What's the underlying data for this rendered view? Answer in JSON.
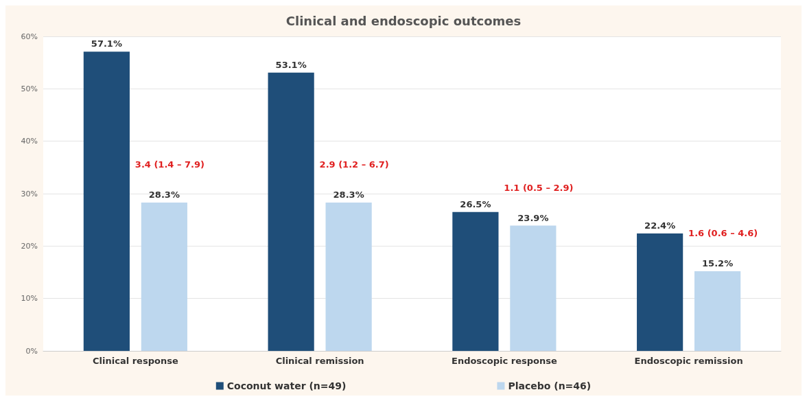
{
  "chart_data": {
    "type": "bar",
    "title": "Clinical and endoscopic outcomes",
    "categories": [
      "Clinical response",
      "Clinical remission",
      "Endoscopic response",
      "Endoscopic remission"
    ],
    "series": [
      {
        "name": "Coconut water (n=49)",
        "color": "#1f4e79",
        "values": [
          57.1,
          53.1,
          26.5,
          22.4
        ],
        "value_labels": [
          "57.1%",
          "53.1%",
          "26.5%",
          "22.4%"
        ]
      },
      {
        "name": "Placebo (n=46)",
        "color": "#bdd7ee",
        "values": [
          28.3,
          28.3,
          23.9,
          15.2
        ],
        "value_labels": [
          "28.3%",
          "28.3%",
          "23.9%",
          "15.2%"
        ]
      }
    ],
    "ylim": [
      0,
      60
    ],
    "yticks": [
      {
        "value": 0,
        "label": "0%"
      },
      {
        "value": 10,
        "label": "10%"
      },
      {
        "value": 20,
        "label": "20%"
      },
      {
        "value": 30,
        "label": "30%"
      },
      {
        "value": 40,
        "label": "40%"
      },
      {
        "value": 50,
        "label": "50%"
      },
      {
        "value": 60,
        "label": "60%"
      }
    ],
    "annotations": [
      "3.4 (1.4 – 7.9)",
      "2.9 (1.2 – 6.7)",
      "1.1 (0.5 – 2.9)",
      "1.6 (0.6 – 4.6)"
    ],
    "grid": "y",
    "legend": "bottom"
  }
}
